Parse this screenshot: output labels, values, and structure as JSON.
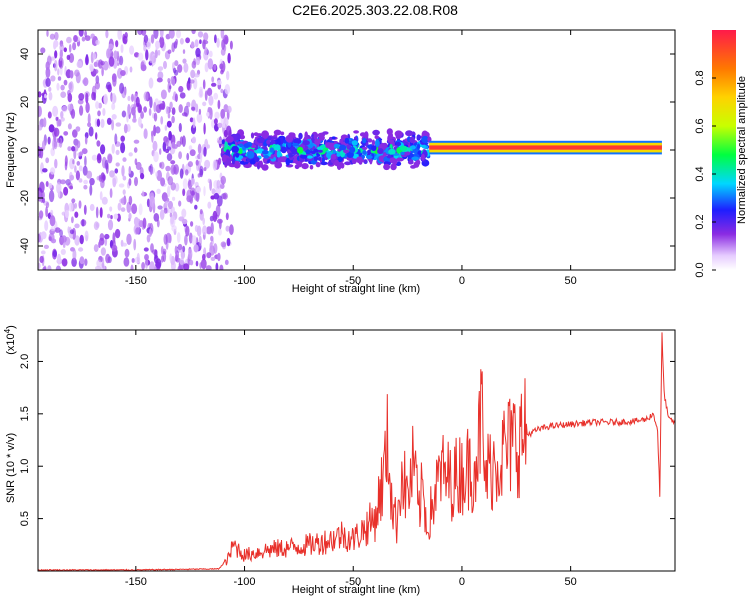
{
  "chart_data": [
    {
      "type": "heatmap",
      "title": "C2E6.2025.303.22.08.R08",
      "xlabel": "Height of straight line (km)",
      "ylabel": "Frequency (Hz)",
      "xlim": [
        -195,
        98
      ],
      "ylim": [
        -50,
        50
      ],
      "xticks": [
        "-150",
        "-100",
        "-50",
        "0",
        "50"
      ],
      "xtick_values": [
        -150,
        -100,
        -50,
        0,
        50
      ],
      "yticks": [
        "40",
        "20",
        "0",
        "-20",
        "-40"
      ],
      "ytick_values": [
        40,
        20,
        0,
        -20,
        -40
      ],
      "colorbar": {
        "label": "Normalized spectral amplitude",
        "ticks": [
          "0.0",
          "0.2",
          "0.4",
          "0.6",
          "0.8"
        ],
        "tick_values": [
          0.0,
          0.2,
          0.4,
          0.6,
          0.8
        ],
        "range": [
          0,
          1
        ]
      },
      "regions": [
        {
          "x_range": [
            -195,
            -110
          ],
          "freq_range": [
            -50,
            50
          ],
          "amplitude": 0.1,
          "description": "noise"
        },
        {
          "x_range": [
            -110,
            -15
          ],
          "freq_center": 0,
          "freq_halfwidth": 8,
          "amplitude": 0.4
        },
        {
          "x_range": [
            -15,
            92
          ],
          "freq_center": 1,
          "freq_halfwidth": 2,
          "amplitude": 0.95
        }
      ]
    },
    {
      "type": "line",
      "xlabel": "Height of straight line (km)",
      "ylabel": "SNR (10 * v/v)",
      "scale_label": "(x10",
      "scale_exponent": "4",
      "xlim": [
        -195,
        98
      ],
      "ylim": [
        0,
        2.3
      ],
      "xticks": [
        "-150",
        "-100",
        "-50",
        "0",
        "50"
      ],
      "xtick_values": [
        -150,
        -100,
        -50,
        0,
        50
      ],
      "yticks": [
        "0.5",
        "1.0",
        "1.5",
        "2.0"
      ],
      "ytick_values": [
        0.5,
        1.0,
        1.5,
        2.0
      ],
      "series": [
        {
          "name": "SNR",
          "color": "#e8302a",
          "x": [
            -195,
            -150,
            -112,
            -108,
            -105,
            -100,
            -90,
            -80,
            -70,
            -60,
            -55,
            -50,
            -45,
            -40,
            -36,
            -34,
            -32,
            -30,
            -28,
            -25,
            -22,
            -20,
            -18,
            -16,
            -14,
            -12,
            -10,
            -5,
            0,
            5,
            8,
            9,
            10,
            12,
            15,
            18,
            20,
            25,
            30,
            35,
            40,
            50,
            60,
            70,
            80,
            85,
            88,
            90,
            91,
            92,
            93,
            95,
            98
          ],
          "y": [
            0.01,
            0.01,
            0.02,
            0.1,
            0.25,
            0.15,
            0.2,
            0.22,
            0.25,
            0.3,
            0.35,
            0.3,
            0.4,
            0.5,
            0.9,
            1.25,
            0.6,
            0.45,
            0.95,
            0.7,
            1.05,
            0.55,
            0.8,
            0.4,
            0.6,
            0.75,
            0.95,
            0.85,
            0.95,
            1.0,
            1.25,
            1.65,
            0.9,
            0.95,
            1.05,
            1.1,
            1.15,
            1.25,
            1.3,
            1.35,
            1.38,
            1.4,
            1.42,
            1.42,
            1.43,
            1.45,
            1.5,
            1.35,
            0.72,
            2.25,
            1.7,
            1.45,
            1.42
          ]
        }
      ]
    }
  ]
}
